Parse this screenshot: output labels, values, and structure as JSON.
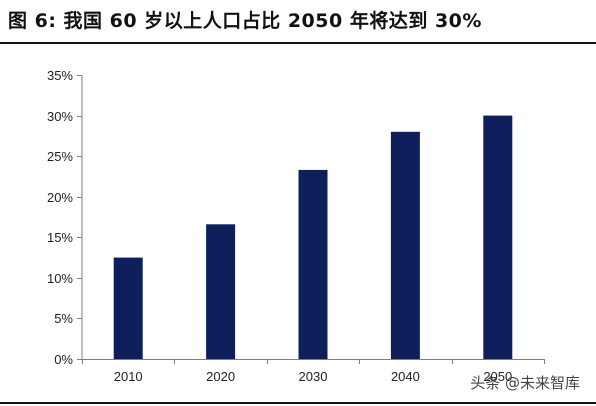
{
  "figure": {
    "title": "图 6:  我国 60 岁以上人口占比 2050 年将达到 30%"
  },
  "watermark": "头条 @未来智库",
  "chart_data": {
    "type": "bar",
    "categories": [
      "2010",
      "2020",
      "2030",
      "2040",
      "2050"
    ],
    "values": [
      12.5,
      16.6,
      23.3,
      28.0,
      30.0
    ],
    "ylim": [
      0,
      35
    ],
    "yticks": [
      0,
      5,
      10,
      15,
      20,
      25,
      30,
      35
    ],
    "ytick_labels": [
      "0%",
      "5%",
      "10%",
      "15%",
      "20%",
      "25%",
      "30%",
      "35%"
    ],
    "bar_color": "#0e1f5b",
    "axis_color": "#7f7f7f",
    "grid": false,
    "legend": "none"
  }
}
